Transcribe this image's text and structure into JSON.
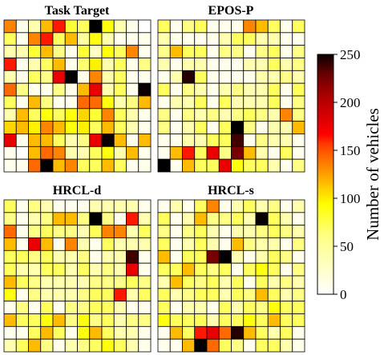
{
  "chart_data": {
    "type": "heatmap",
    "grid_size": 12,
    "colormap": "hot_r",
    "colorbar": {
      "label": "Number of vehicles",
      "min": 0,
      "max": 250,
      "ticks": [
        "0",
        "50",
        "100",
        "150",
        "200",
        "250"
      ],
      "tick_values": [
        0,
        50,
        100,
        150,
        200,
        250
      ]
    },
    "panels": [
      {
        "title": "Task Target",
        "values": [
          [
            110,
            5,
            20,
            90,
            150,
            50,
            40,
            245,
            60,
            20,
            5,
            0
          ],
          [
            40,
            5,
            110,
            150,
            40,
            90,
            25,
            60,
            20,
            5,
            5,
            5
          ],
          [
            20,
            20,
            50,
            90,
            30,
            5,
            50,
            15,
            60,
            40,
            110,
            5
          ],
          [
            150,
            5,
            20,
            40,
            90,
            5,
            35,
            70,
            20,
            40,
            5,
            30
          ],
          [
            20,
            5,
            40,
            30,
            160,
            245,
            5,
            110,
            20,
            40,
            5,
            5
          ],
          [
            120,
            30,
            5,
            5,
            30,
            5,
            90,
            160,
            20,
            40,
            5,
            240
          ],
          [
            40,
            5,
            90,
            30,
            5,
            5,
            120,
            120,
            60,
            20,
            30,
            90
          ],
          [
            20,
            90,
            40,
            60,
            40,
            60,
            80,
            50,
            110,
            40,
            20,
            5
          ],
          [
            80,
            90,
            70,
            110,
            90,
            60,
            70,
            40,
            90,
            40,
            20,
            5
          ],
          [
            160,
            5,
            90,
            90,
            40,
            20,
            30,
            160,
            240,
            90,
            5,
            90
          ],
          [
            5,
            0,
            90,
            120,
            110,
            20,
            20,
            40,
            60,
            20,
            90,
            5
          ],
          [
            5,
            5,
            120,
            245,
            90,
            110,
            40,
            40,
            90,
            40,
            5,
            5
          ]
        ]
      },
      {
        "title": "EPOS-P",
        "values": [
          [
            40,
            5,
            30,
            40,
            5,
            5,
            5,
            110,
            90,
            40,
            5,
            40
          ],
          [
            20,
            5,
            5,
            5,
            5,
            20,
            40,
            40,
            20,
            20,
            5,
            5
          ],
          [
            30,
            90,
            40,
            40,
            5,
            30,
            30,
            5,
            30,
            40,
            5,
            30
          ],
          [
            20,
            5,
            20,
            20,
            5,
            5,
            5,
            20,
            20,
            40,
            20,
            30
          ],
          [
            5,
            20,
            230,
            40,
            5,
            5,
            5,
            5,
            20,
            20,
            30,
            20
          ],
          [
            40,
            5,
            30,
            20,
            5,
            20,
            30,
            20,
            20,
            40,
            5,
            40
          ],
          [
            5,
            20,
            20,
            40,
            5,
            40,
            20,
            20,
            20,
            40,
            5,
            30
          ],
          [
            30,
            5,
            30,
            20,
            30,
            20,
            30,
            40,
            30,
            20,
            110,
            30
          ],
          [
            30,
            5,
            20,
            40,
            5,
            40,
            245,
            30,
            5,
            20,
            20,
            90
          ],
          [
            5,
            5,
            20,
            20,
            40,
            40,
            220,
            5,
            30,
            20,
            20,
            5
          ],
          [
            5,
            90,
            150,
            40,
            160,
            30,
            200,
            90,
            20,
            5,
            40,
            5
          ],
          [
            250,
            5,
            90,
            40,
            40,
            160,
            60,
            40,
            40,
            20,
            5,
            30
          ]
        ]
      },
      {
        "title": "HRCL-d",
        "values": [
          [
            40,
            5,
            30,
            20,
            5,
            5,
            5,
            20,
            20,
            20,
            20,
            5
          ],
          [
            30,
            5,
            20,
            30,
            90,
            90,
            30,
            250,
            30,
            5,
            150,
            20
          ],
          [
            120,
            5,
            30,
            40,
            30,
            30,
            20,
            40,
            110,
            110,
            20,
            40
          ],
          [
            90,
            5,
            160,
            90,
            5,
            110,
            20,
            5,
            40,
            20,
            20,
            20
          ],
          [
            40,
            40,
            30,
            40,
            20,
            20,
            30,
            5,
            20,
            20,
            220,
            5
          ],
          [
            40,
            20,
            20,
            40,
            40,
            20,
            40,
            20,
            30,
            20,
            160,
            5
          ],
          [
            90,
            40,
            30,
            20,
            20,
            20,
            20,
            30,
            30,
            30,
            40,
            30
          ],
          [
            60,
            5,
            30,
            20,
            20,
            20,
            30,
            40,
            40,
            150,
            20,
            40
          ],
          [
            5,
            30,
            5,
            40,
            5,
            30,
            30,
            40,
            40,
            20,
            5,
            5
          ],
          [
            90,
            40,
            40,
            60,
            90,
            30,
            60,
            30,
            40,
            20,
            30,
            30
          ],
          [
            5,
            5,
            40,
            90,
            40,
            5,
            60,
            90,
            40,
            20,
            20,
            5
          ],
          [
            20,
            40,
            90,
            30,
            5,
            20,
            30,
            40,
            60,
            40,
            20,
            5
          ]
        ]
      },
      {
        "title": "HRCL-s",
        "values": [
          [
            5,
            20,
            5,
            40,
            110,
            5,
            20,
            40,
            20,
            30,
            5,
            20
          ],
          [
            40,
            5,
            20,
            90,
            30,
            30,
            40,
            20,
            240,
            40,
            20,
            5
          ],
          [
            30,
            5,
            30,
            40,
            20,
            5,
            20,
            20,
            30,
            40,
            30,
            20
          ],
          [
            40,
            5,
            20,
            40,
            20,
            5,
            90,
            30,
            20,
            20,
            5,
            30
          ],
          [
            90,
            5,
            40,
            40,
            200,
            250,
            20,
            5,
            20,
            40,
            30,
            5
          ],
          [
            40,
            40,
            90,
            40,
            30,
            40,
            5,
            40,
            60,
            40,
            5,
            30
          ],
          [
            20,
            90,
            40,
            30,
            40,
            20,
            40,
            5,
            40,
            20,
            30,
            20
          ],
          [
            40,
            20,
            30,
            40,
            40,
            20,
            40,
            30,
            90,
            40,
            20,
            30
          ],
          [
            40,
            5,
            20,
            20,
            5,
            40,
            20,
            40,
            30,
            60,
            40,
            40
          ],
          [
            60,
            40,
            40,
            40,
            20,
            40,
            40,
            60,
            40,
            90,
            40,
            40
          ],
          [
            5,
            90,
            40,
            150,
            160,
            120,
            230,
            90,
            40,
            20,
            40,
            5
          ],
          [
            5,
            5,
            90,
            250,
            120,
            40,
            30,
            5,
            40,
            40,
            20,
            5
          ]
        ]
      }
    ]
  }
}
